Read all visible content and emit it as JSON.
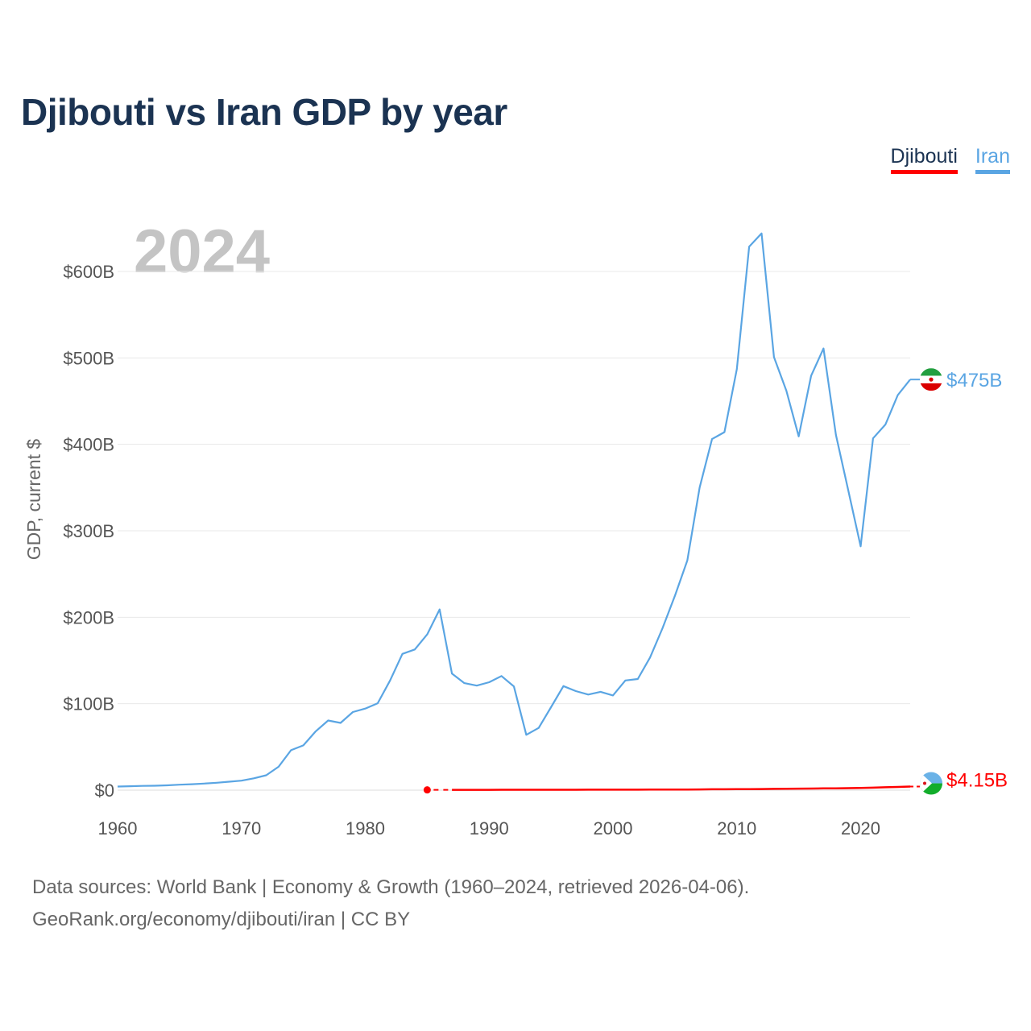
{
  "title": "Djibouti vs Iran GDP by year",
  "legend": [
    {
      "name": "Djibouti",
      "color": "#ff0000"
    },
    {
      "name": "Iran",
      "color": "#5aa5e3"
    }
  ],
  "footer": {
    "line1": "Data sources: World Bank | Economy & Growth (1960–2024, retrieved 2026-04-06).",
    "line2": "GeoRank.org/economy/djibouti/iran | CC BY"
  },
  "chart_data": {
    "type": "line",
    "title": "Djibouti vs Iran GDP by year",
    "year_label": "2024",
    "xlabel": "",
    "ylabel": "GDP, current $",
    "xlim": [
      1960,
      2024
    ],
    "ylim": [
      0,
      600
    ],
    "y_unit": "billion USD",
    "x_ticks": [
      1960,
      1970,
      1980,
      1990,
      2000,
      2010,
      2020
    ],
    "y_ticks": [
      {
        "value": 0,
        "label": "$0"
      },
      {
        "value": 100,
        "label": "$100B"
      },
      {
        "value": 200,
        "label": "$200B"
      },
      {
        "value": 300,
        "label": "$300B"
      },
      {
        "value": 400,
        "label": "$400B"
      },
      {
        "value": 500,
        "label": "$500B"
      },
      {
        "value": 600,
        "label": "$600B"
      }
    ],
    "grid": true,
    "legend_position": "top-right",
    "series": [
      {
        "name": "Iran",
        "color": "#5aa5e3",
        "end_label": "$475B",
        "x": [
          1960,
          1961,
          1962,
          1963,
          1964,
          1965,
          1966,
          1967,
          1968,
          1969,
          1970,
          1971,
          1972,
          1973,
          1974,
          1975,
          1976,
          1977,
          1978,
          1979,
          1980,
          1981,
          1982,
          1983,
          1984,
          1985,
          1986,
          1987,
          1988,
          1989,
          1990,
          1991,
          1992,
          1993,
          1994,
          1995,
          1996,
          1997,
          1998,
          1999,
          2000,
          2001,
          2002,
          2003,
          2004,
          2005,
          2006,
          2007,
          2008,
          2009,
          2010,
          2011,
          2012,
          2013,
          2014,
          2015,
          2016,
          2017,
          2018,
          2019,
          2020,
          2021,
          2022,
          2023,
          2024
        ],
        "values": [
          4.2,
          4.6,
          4.9,
          5.1,
          5.6,
          6.3,
          6.9,
          7.6,
          8.6,
          9.8,
          11.0,
          13.7,
          17.2,
          27.1,
          46.2,
          51.8,
          68.1,
          80.6,
          77.8,
          90.4,
          94.4,
          100.5,
          126.9,
          157.6,
          162.8,
          180.2,
          209.1,
          134.8,
          123.8,
          120.9,
          124.8,
          132.0,
          120.0,
          64.0,
          72.0,
          96.0,
          120.4,
          114.6,
          110.6,
          113.8,
          109.6,
          126.9,
          128.6,
          153.5,
          187.3,
          224.8,
          265.6,
          350.0,
          406.1,
          414.1,
          487.1,
          628.7,
          644.0,
          500.9,
          462.0,
          409.2,
          479.3,
          510.9,
          411.0,
          347.0,
          282.0,
          407.0,
          423.0,
          457.0,
          475.0
        ]
      },
      {
        "name": "Djibouti",
        "color": "#ff0000",
        "end_label": "$4.15B",
        "x": [
          1985,
          1986,
          1987,
          1988,
          1989,
          1990,
          1991,
          1992,
          1993,
          1994,
          1995,
          1996,
          1997,
          1998,
          1999,
          2000,
          2001,
          2002,
          2003,
          2004,
          2005,
          2006,
          2007,
          2008,
          2009,
          2010,
          2011,
          2012,
          2013,
          2014,
          2015,
          2016,
          2017,
          2018,
          2019,
          2020,
          2021,
          2022,
          2023,
          2024
        ],
        "values": [
          0.34,
          0.34,
          0.36,
          0.37,
          0.38,
          0.4,
          0.42,
          0.43,
          0.43,
          0.43,
          0.46,
          0.49,
          0.5,
          0.52,
          0.55,
          0.55,
          0.57,
          0.59,
          0.62,
          0.67,
          0.71,
          0.77,
          0.85,
          1.0,
          1.05,
          1.13,
          1.24,
          1.35,
          1.46,
          1.59,
          1.73,
          1.88,
          2.02,
          2.17,
          2.3,
          2.48,
          2.87,
          3.37,
          3.74,
          4.15
        ],
        "gap_after_first": true
      }
    ]
  }
}
